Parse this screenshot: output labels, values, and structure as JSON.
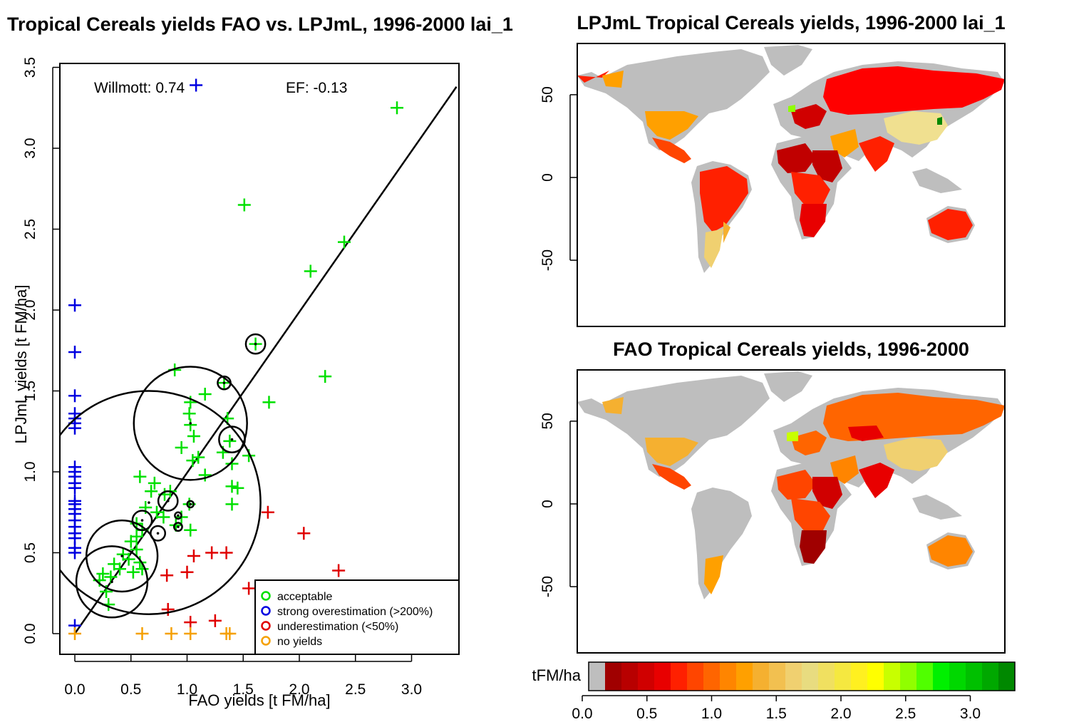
{
  "scatter": {
    "title": "Tropical Cereals yields FAO vs. LPJmL, 1996-2000 lai_1",
    "xlabel": "FAO yields [t FM/ha]",
    "ylabel": "LPJmL yields [t FM/ha]",
    "willmott": "Willmott: 0.74",
    "ef": "EF: -0.13",
    "legend": [
      {
        "label": "acceptable",
        "color": "#00e000"
      },
      {
        "label": "strong overestimation (>200%)",
        "color": "#0000e0"
      },
      {
        "label": "underestimation (<50%)",
        "color": "#e00000"
      },
      {
        "label": "no yields",
        "color": "#f5a000"
      }
    ]
  },
  "map_top": {
    "title": "LPJmL Tropical Cereals yields, 1996-2000 lai_1"
  },
  "map_bottom": {
    "title": "FAO Tropical Cereals yields, 1996-2000"
  },
  "colorbar": {
    "label": "tFM/ha",
    "ticks": [
      "0.0",
      "0.5",
      "1.0",
      "1.5",
      "2.0",
      "2.5",
      "3.0"
    ],
    "colors": [
      "#bebebe",
      "#a00000",
      "#b80000",
      "#d00000",
      "#e80000",
      "#ff2000",
      "#ff4500",
      "#ff6500",
      "#ff8500",
      "#ffa000",
      "#f5b030",
      "#f2c050",
      "#f0d070",
      "#e8dc80",
      "#f0e060",
      "#f5e840",
      "#fff020",
      "#ffff00",
      "#c8ff00",
      "#90ff00",
      "#50ff00",
      "#00f000",
      "#00d800",
      "#00c000",
      "#00a800",
      "#008800"
    ]
  },
  "chart_data": [
    {
      "type": "scatter",
      "title": "Tropical Cereals yields FAO vs. LPJmL, 1996-2000 lai_1",
      "xlabel": "FAO yields [t FM/ha]",
      "ylabel": "LPJmL yields [t FM/ha]",
      "xlim": [
        -0.13,
        3.5
      ],
      "ylim": [
        -0.13,
        3.5
      ],
      "xticks": [
        "0.0",
        "0.5",
        "1.0",
        "1.5",
        "2.0",
        "2.5",
        "3.0"
      ],
      "yticks": [
        "0.0",
        "0.5",
        "1.0",
        "1.5",
        "2.0",
        "2.5",
        "3.0",
        "3.5"
      ],
      "regression_line": [
        [
          0.0,
          0.0
        ],
        [
          3.4,
          3.38
        ]
      ],
      "series": [
        {
          "name": "acceptable",
          "color": "#00e000",
          "points": [
            [
              2.87,
              3.25
            ],
            [
              1.51,
              2.65
            ],
            [
              2.4,
              2.42
            ],
            [
              2.1,
              2.24
            ],
            [
              1.61,
              1.79
            ],
            [
              0.89,
              1.63
            ],
            [
              1.16,
              1.48
            ],
            [
              1.33,
              1.55
            ],
            [
              1.73,
              1.43
            ],
            [
              2.23,
              1.59
            ],
            [
              1.03,
              1.43
            ],
            [
              1.02,
              1.36
            ],
            [
              1.03,
              1.29
            ],
            [
              1.06,
              1.22
            ],
            [
              1.36,
              1.33
            ],
            [
              1.38,
              1.19
            ],
            [
              1.32,
              1.12
            ],
            [
              1.55,
              1.1
            ],
            [
              1.05,
              1.07
            ],
            [
              1.1,
              1.09
            ],
            [
              1.4,
              1.05
            ],
            [
              0.95,
              1.15
            ],
            [
              0.58,
              0.97
            ],
            [
              0.71,
              0.93
            ],
            [
              0.68,
              0.88
            ],
            [
              0.85,
              0.88
            ],
            [
              0.8,
              0.86
            ],
            [
              1.16,
              0.98
            ],
            [
              1.4,
              0.91
            ],
            [
              1.45,
              0.9
            ],
            [
              0.55,
              0.68
            ],
            [
              0.6,
              0.64
            ],
            [
              0.63,
              0.78
            ],
            [
              0.73,
              0.75
            ],
            [
              0.79,
              0.72
            ],
            [
              0.9,
              0.67
            ],
            [
              0.95,
              0.72
            ],
            [
              1.02,
              0.8
            ],
            [
              1.4,
              0.8
            ],
            [
              1.03,
              0.64
            ],
            [
              0.5,
              0.57
            ],
            [
              0.55,
              0.52
            ],
            [
              0.43,
              0.49
            ],
            [
              0.48,
              0.46
            ],
            [
              0.58,
              0.44
            ],
            [
              0.35,
              0.43
            ],
            [
              0.4,
              0.4
            ],
            [
              0.52,
              0.38
            ],
            [
              0.32,
              0.35
            ],
            [
              0.25,
              0.37
            ],
            [
              0.22,
              0.33
            ],
            [
              0.28,
              0.26
            ],
            [
              0.3,
              0.18
            ],
            [
              0.6,
              0.4
            ],
            [
              0.55,
              0.6
            ]
          ]
        },
        {
          "name": "strong overestimation (>200%)",
          "color": "#0000e0",
          "points": [
            [
              1.08,
              3.39
            ],
            [
              0.0,
              2.03
            ],
            [
              0.0,
              1.74
            ],
            [
              0.0,
              1.47
            ],
            [
              0.0,
              1.36
            ],
            [
              0.0,
              1.33
            ],
            [
              0.0,
              1.3
            ],
            [
              0.0,
              1.27
            ],
            [
              0.0,
              1.03
            ],
            [
              0.0,
              1.0
            ],
            [
              0.0,
              0.97
            ],
            [
              0.0,
              0.93
            ],
            [
              0.0,
              0.9
            ],
            [
              0.0,
              0.82
            ],
            [
              0.0,
              0.8
            ],
            [
              0.0,
              0.77
            ],
            [
              0.0,
              0.74
            ],
            [
              0.0,
              0.7
            ],
            [
              0.0,
              0.66
            ],
            [
              0.0,
              0.62
            ],
            [
              0.0,
              0.59
            ],
            [
              0.0,
              0.53
            ],
            [
              0.0,
              0.5
            ],
            [
              0.0,
              0.05
            ]
          ]
        },
        {
          "name": "underestimation (<50%)",
          "color": "#e00000",
          "points": [
            [
              1.72,
              0.75
            ],
            [
              2.04,
              0.62
            ],
            [
              1.06,
              0.48
            ],
            [
              1.22,
              0.5
            ],
            [
              1.35,
              0.5
            ],
            [
              1.0,
              0.38
            ],
            [
              0.82,
              0.36
            ],
            [
              2.35,
              0.39
            ],
            [
              1.55,
              0.28
            ],
            [
              0.83,
              0.15
            ],
            [
              1.03,
              0.07
            ],
            [
              1.25,
              0.08
            ]
          ]
        },
        {
          "name": "no yields",
          "color": "#f5a000",
          "points": [
            [
              0.0,
              0.0
            ],
            [
              0.6,
              0.0
            ],
            [
              0.86,
              0.0
            ],
            [
              1.03,
              0.0
            ],
            [
              1.35,
              0.0
            ],
            [
              1.38,
              0.0
            ]
          ]
        }
      ],
      "circles": [
        {
          "x": 0.66,
          "y": 0.81,
          "r": 0.69
        },
        {
          "x": 1.03,
          "y": 1.3,
          "r": 0.35
        },
        {
          "x": 0.42,
          "y": 0.48,
          "r": 0.22
        },
        {
          "x": 0.33,
          "y": 0.32,
          "r": 0.22
        },
        {
          "x": 1.4,
          "y": 1.2,
          "r": 0.08
        },
        {
          "x": 1.61,
          "y": 1.79,
          "r": 0.06
        },
        {
          "x": 0.83,
          "y": 0.82,
          "r": 0.06
        },
        {
          "x": 0.6,
          "y": 0.7,
          "r": 0.06
        },
        {
          "x": 0.74,
          "y": 0.62,
          "r": 0.045
        },
        {
          "x": 1.33,
          "y": 1.55,
          "r": 0.04
        },
        {
          "x": 0.92,
          "y": 0.66,
          "r": 0.025
        },
        {
          "x": 1.03,
          "y": 0.8,
          "r": 0.02
        },
        {
          "x": 0.92,
          "y": 0.73,
          "r": 0.02
        }
      ]
    },
    {
      "type": "heatmap",
      "title": "LPJmL Tropical Cereals yields, 1996-2000 lai_1",
      "yticks": [
        "50",
        "0",
        "-50"
      ],
      "ylim": [
        -90,
        90
      ],
      "xlim": [
        -180,
        180
      ]
    },
    {
      "type": "heatmap",
      "title": "FAO Tropical Cereals yields, 1996-2000",
      "yticks": [
        "50",
        "0",
        "-50"
      ],
      "ylim": [
        -90,
        90
      ],
      "xlim": [
        -180,
        180
      ]
    }
  ]
}
